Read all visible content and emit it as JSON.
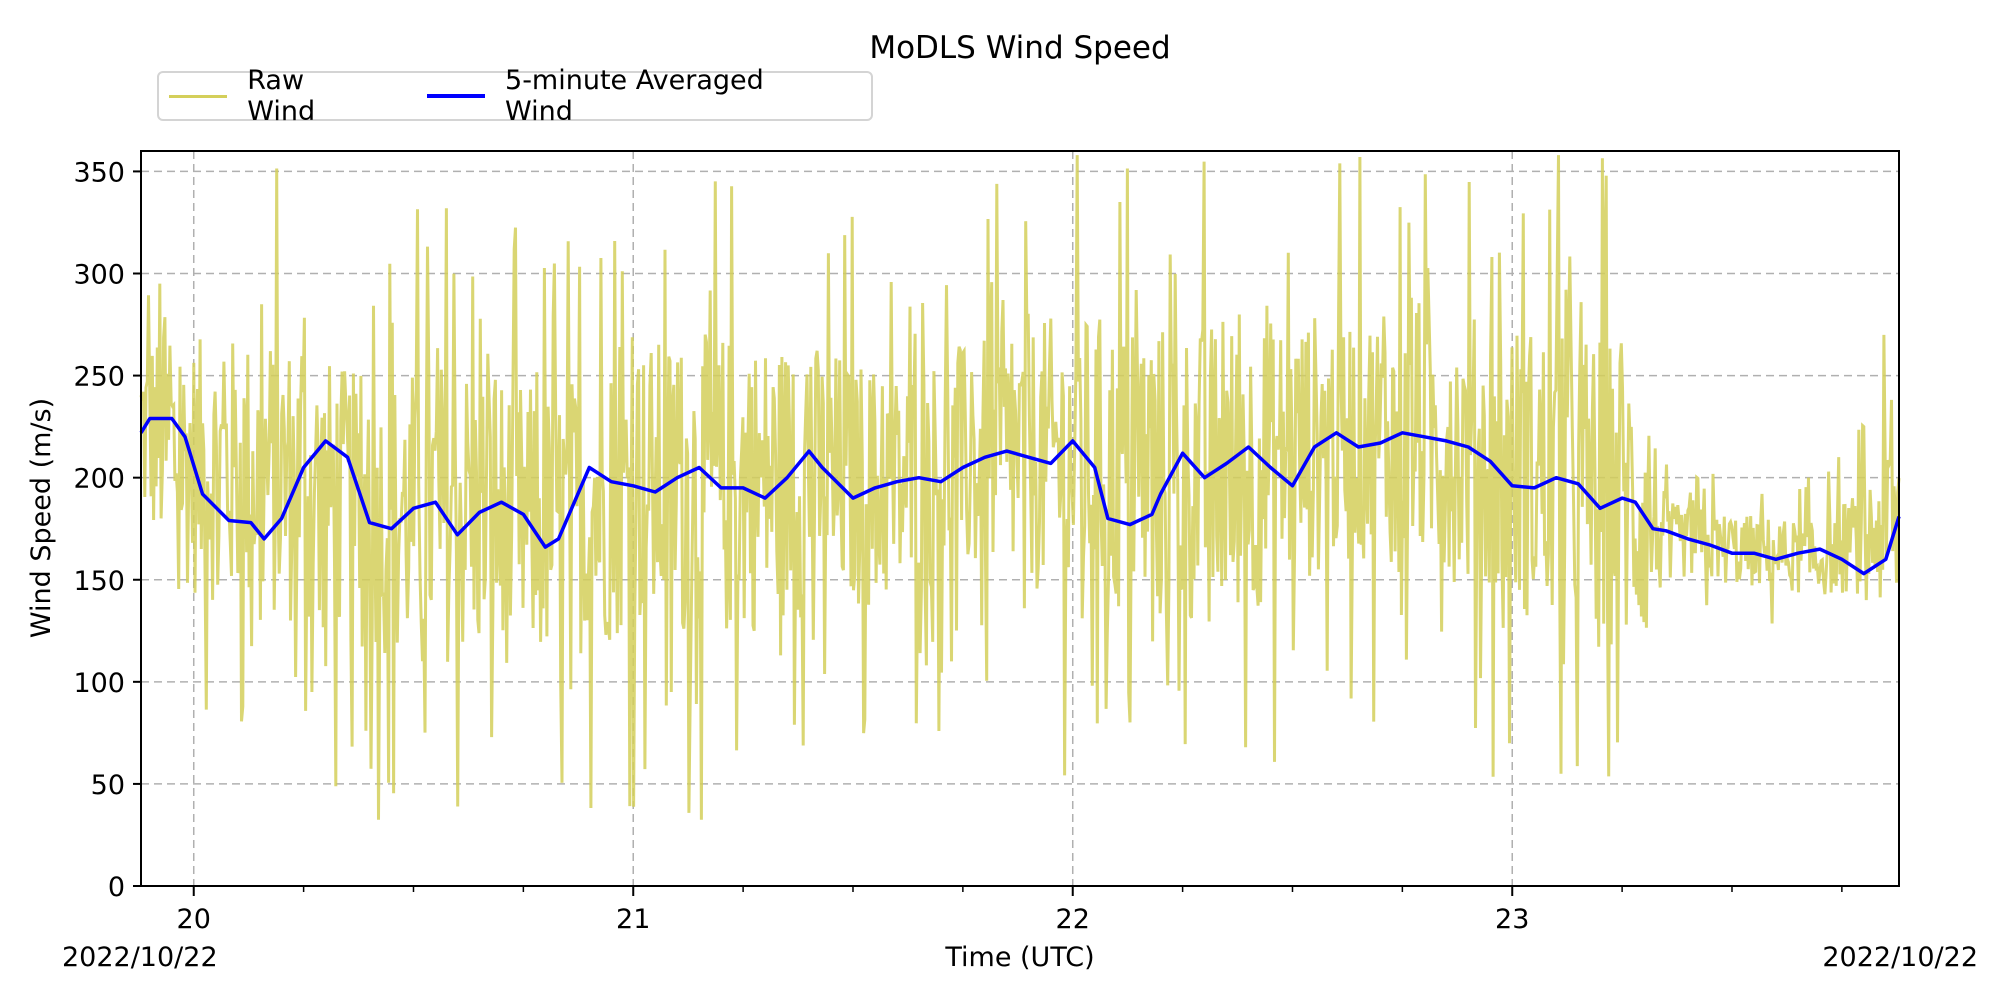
{
  "chart_data": {
    "type": "line",
    "title": "MoDLS Wind Speed",
    "xlabel": "Time (UTC)",
    "ylabel": "Wind Speed (m/s)",
    "date_labels": {
      "left": "2022/10/22",
      "right": "2022/10/22"
    },
    "xlim": [
      19.88,
      23.88
    ],
    "ylim": [
      0,
      360
    ],
    "x_ticks": [
      20,
      21,
      22,
      23
    ],
    "y_ticks": [
      0,
      50,
      100,
      150,
      200,
      250,
      300,
      350
    ],
    "grid": true,
    "legend_position": "top-left",
    "colors": {
      "raw": "#d4cf5a",
      "avg": "#0000ff",
      "grid": "#b0b0b0"
    },
    "series": [
      {
        "name": "Raw Wind",
        "style": "noisy",
        "x": [
          19.88,
          20.0,
          20.2,
          20.4,
          20.6,
          20.8,
          21.0,
          21.2,
          21.4,
          21.6,
          21.8,
          22.0,
          22.2,
          22.4,
          22.6,
          22.8,
          23.0,
          23.2,
          23.3,
          23.35,
          23.5,
          23.7,
          23.8,
          23.88
        ],
        "center": [
          225,
          205,
          200,
          180,
          185,
          175,
          195,
          195,
          200,
          195,
          210,
          210,
          200,
          205,
          220,
          220,
          205,
          195,
          185,
          170,
          165,
          160,
          170,
          180
        ],
        "spread": [
          110,
          140,
          160,
          150,
          170,
          150,
          160,
          170,
          150,
          130,
          130,
          160,
          170,
          160,
          140,
          140,
          160,
          170,
          160,
          40,
          40,
          40,
          60,
          120
        ],
        "points": 1400
      },
      {
        "name": "5-minute Averaged Wind",
        "x": [
          19.88,
          19.9,
          19.95,
          19.98,
          20.02,
          20.08,
          20.13,
          20.16,
          20.2,
          20.25,
          20.3,
          20.35,
          20.4,
          20.45,
          20.5,
          20.55,
          20.6,
          20.65,
          20.7,
          20.75,
          20.8,
          20.83,
          20.9,
          20.95,
          21.0,
          21.05,
          21.1,
          21.15,
          21.2,
          21.25,
          21.3,
          21.35,
          21.4,
          21.43,
          21.5,
          21.55,
          21.6,
          21.65,
          21.7,
          21.75,
          21.8,
          21.85,
          21.9,
          21.95,
          22.0,
          22.05,
          22.08,
          22.13,
          22.18,
          22.2,
          22.25,
          22.3,
          22.35,
          22.4,
          22.45,
          22.5,
          22.55,
          22.6,
          22.65,
          22.7,
          22.75,
          22.8,
          22.85,
          22.9,
          22.95,
          23.0,
          23.05,
          23.1,
          23.15,
          23.2,
          23.25,
          23.28,
          23.32,
          23.35,
          23.4,
          23.45,
          23.5,
          23.55,
          23.6,
          23.65,
          23.7,
          23.75,
          23.8,
          23.85,
          23.88
        ],
        "y": [
          222,
          229,
          229,
          220,
          192,
          179,
          178,
          170,
          180,
          205,
          218,
          210,
          178,
          175,
          185,
          188,
          172,
          183,
          188,
          182,
          166,
          170,
          205,
          198,
          196,
          193,
          200,
          205,
          195,
          195,
          190,
          200,
          213,
          205,
          190,
          195,
          198,
          200,
          198,
          205,
          210,
          213,
          210,
          207,
          218,
          205,
          180,
          177,
          182,
          192,
          212,
          200,
          207,
          215,
          205,
          196,
          215,
          222,
          215,
          217,
          222,
          220,
          218,
          215,
          208,
          196,
          195,
          200,
          197,
          185,
          190,
          188,
          175,
          174,
          170,
          167,
          163,
          163,
          160,
          163,
          165,
          160,
          153,
          160,
          181
        ]
      }
    ]
  }
}
